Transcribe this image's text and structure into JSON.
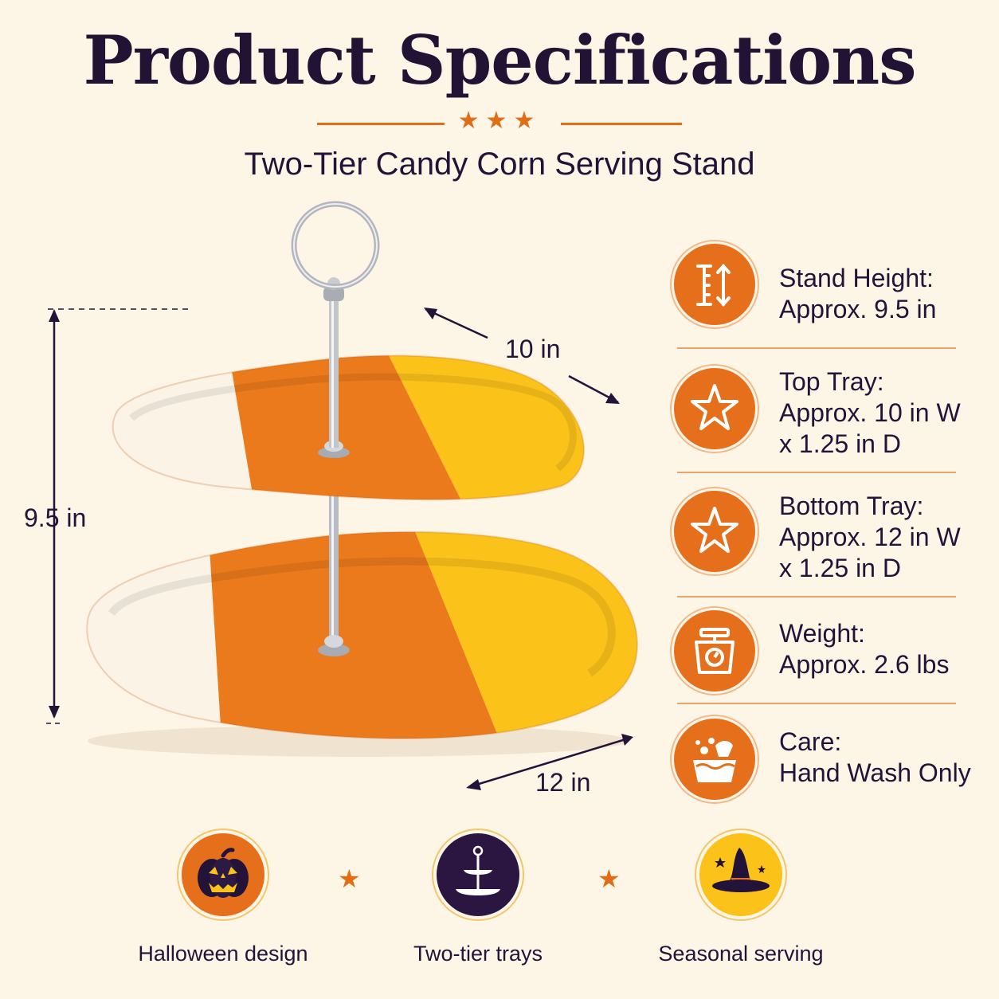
{
  "header": {
    "title": "Product Specifications",
    "subtitle": "Two-Tier Candy Corn Serving Stand"
  },
  "dimensions": {
    "height_label": "9.5 in",
    "top_width_label": "10 in",
    "bottom_width_label": "12 in"
  },
  "specs": [
    {
      "icon": "height-arrows-icon",
      "label": "Stand Height:",
      "lines": [
        "Approx. 9.5 in"
      ]
    },
    {
      "icon": "star-icon",
      "label": "Top Tray:",
      "lines": [
        "Approx. 10 in W",
        "x 1.25 in D"
      ]
    },
    {
      "icon": "star-icon",
      "label": "Bottom Tray:",
      "lines": [
        "Approx. 12 in W",
        "x 1.25 in D"
      ]
    },
    {
      "icon": "scale-icon",
      "label": "Weight:",
      "lines": [
        "Approx. 2.6 lbs"
      ]
    },
    {
      "icon": "hand-wash-icon",
      "label": "Care:",
      "lines": [
        "Hand Wash Only"
      ]
    }
  ],
  "features": [
    {
      "icon": "pumpkin-icon",
      "label": "Halloween design"
    },
    {
      "icon": "tiered-stand-icon",
      "label": "Two-tier trays"
    },
    {
      "icon": "witch-hat-icon",
      "label": "Seasonal serving"
    }
  ],
  "colors": {
    "background": "#fdf5e6",
    "accent_orange": "#e56f1a",
    "candy_yellow": "#fbc21a",
    "candy_white": "#fbf4e6",
    "navy": "#231339"
  }
}
